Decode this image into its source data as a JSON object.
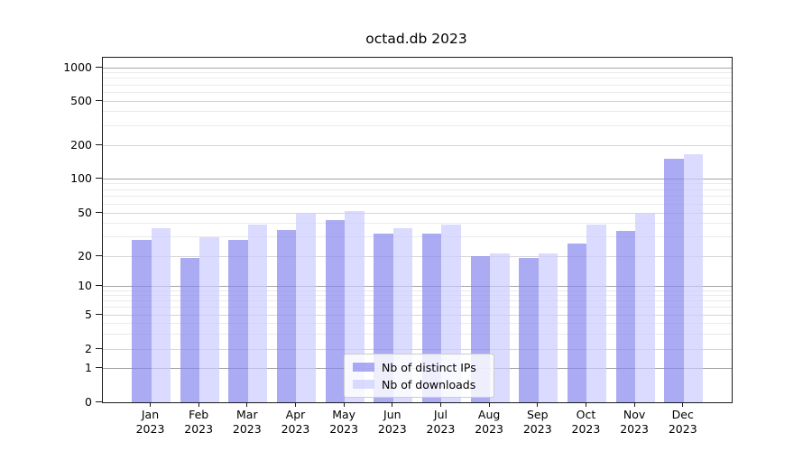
{
  "title": "octad.db 2023",
  "legend": {
    "items": [
      {
        "label": "Nb of distinct IPs"
      },
      {
        "label": "Nb of downloads"
      }
    ]
  },
  "chart_data": {
    "type": "bar",
    "title": "octad.db 2023",
    "x_categories": [
      "Jan 2023",
      "Feb 2023",
      "Mar 2023",
      "Apr 2023",
      "May 2023",
      "Jun 2023",
      "Jul 2023",
      "Aug 2023",
      "Sep 2023",
      "Oct 2023",
      "Nov 2023",
      "Dec 2023"
    ],
    "x_tick_month_line": [
      "Jan",
      "Feb",
      "Mar",
      "Apr",
      "May",
      "Jun",
      "Jul",
      "Aug",
      "Sep",
      "Oct",
      "Nov",
      "Dec"
    ],
    "x_tick_year_line": "2023",
    "series": [
      {
        "name": "Nb of distinct IPs",
        "color": "#8888ee",
        "values": [
          28,
          19,
          28,
          35,
          43,
          32,
          32,
          20,
          19,
          26,
          34,
          150
        ]
      },
      {
        "name": "Nb of downloads",
        "color": "#ccccff",
        "values": [
          36,
          30,
          39,
          49,
          52,
          36,
          39,
          21,
          21,
          39,
          49,
          165
        ]
      }
    ],
    "bar_alpha": 0.7,
    "y_axis": {
      "scale": "asinh-log",
      "ticks": [
        0,
        1,
        2,
        5,
        10,
        20,
        50,
        100,
        200,
        500,
        1000
      ],
      "minor_ticks": [
        3,
        4,
        6,
        7,
        8,
        9,
        30,
        40,
        60,
        70,
        80,
        90,
        300,
        400,
        600,
        700,
        800,
        900
      ],
      "range": [
        0,
        1000
      ]
    },
    "grid": true,
    "legend_position": "lower center"
  }
}
